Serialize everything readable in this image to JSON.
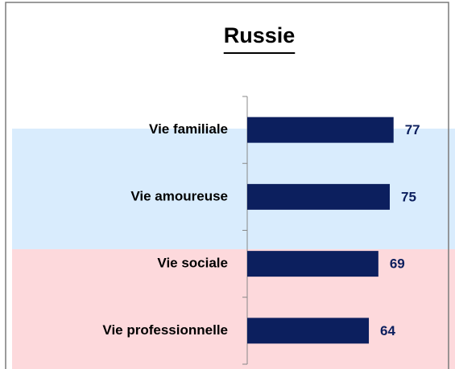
{
  "chart_data": {
    "type": "bar",
    "orientation": "horizontal",
    "title": "Russie",
    "categories": [
      "Vie familiale",
      "Vie amoureuse",
      "Vie sociale",
      "Vie professionnelle"
    ],
    "values": [
      77,
      75,
      69,
      64
    ],
    "color": "#0c1f5e",
    "xlim": [
      0,
      100
    ]
  }
}
